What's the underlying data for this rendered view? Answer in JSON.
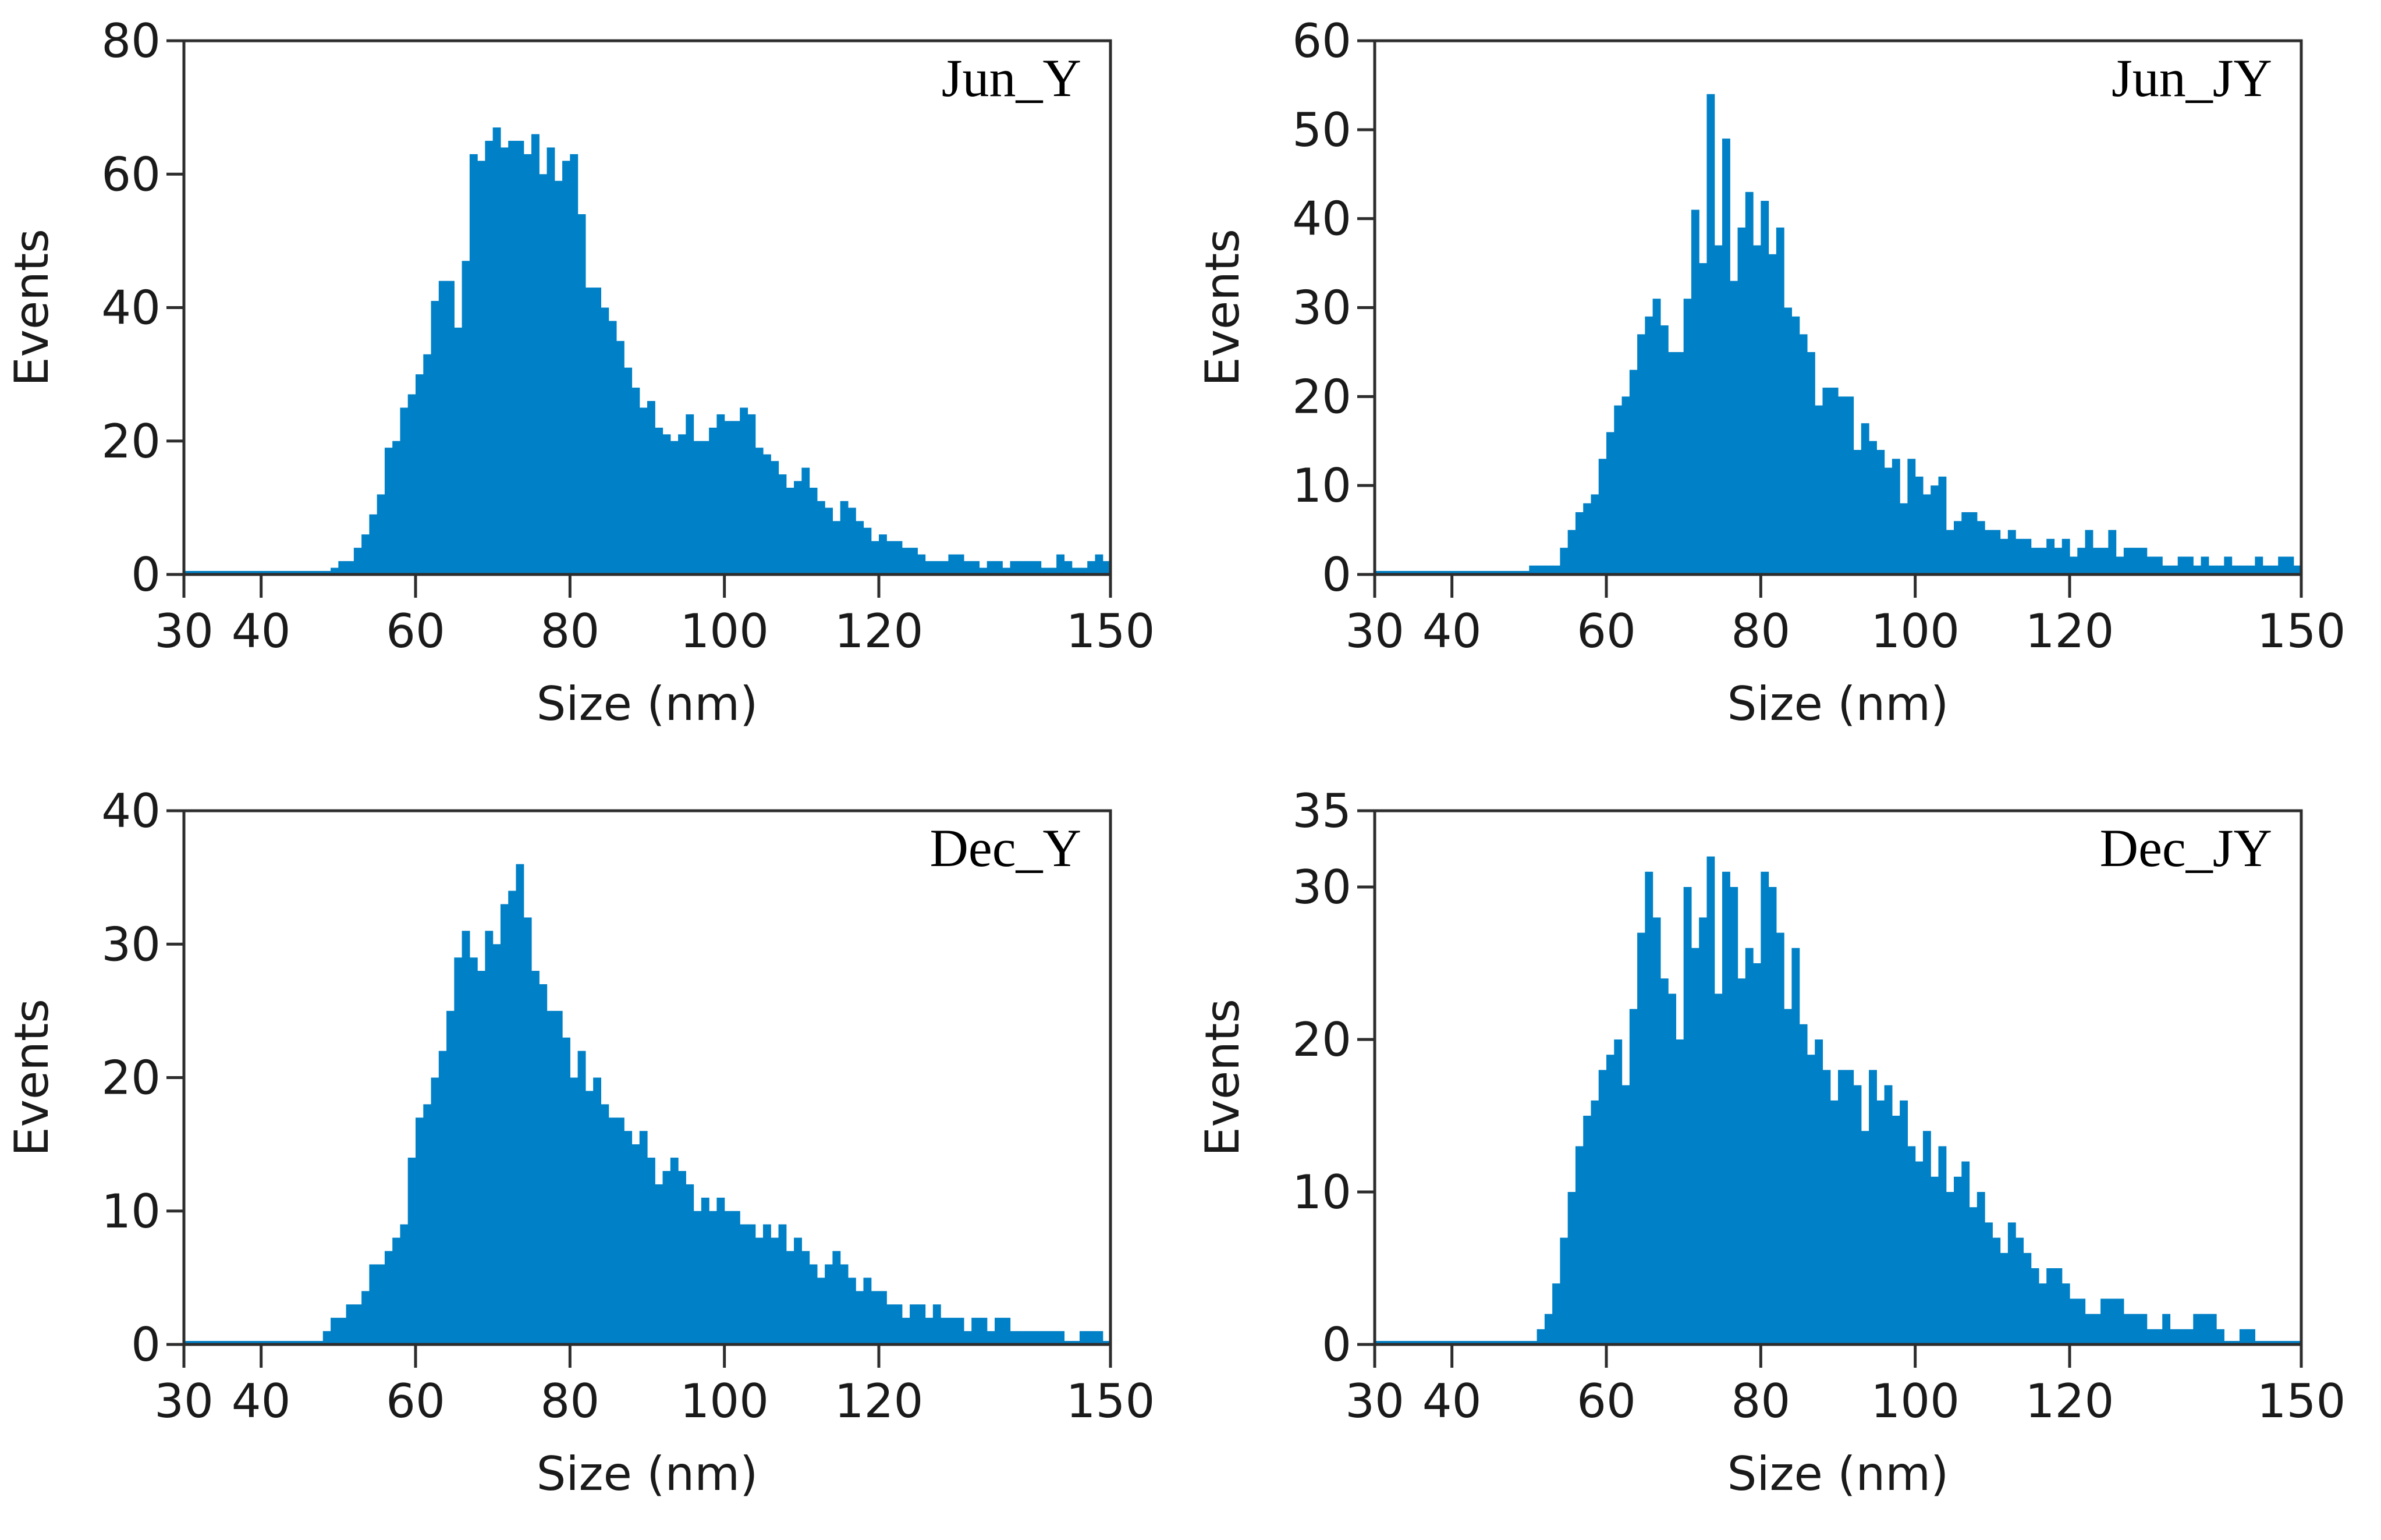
{
  "figure": {
    "bar_color": "#0080C6",
    "text_color": "#1a1a1a",
    "tick_color": "#2d2d2d"
  },
  "chart_data": [
    {
      "type": "bar",
      "title": "Jun_Y",
      "xlabel": "Size (nm)",
      "ylabel": "Events",
      "xlim": [
        30,
        150
      ],
      "ylim": [
        0,
        80
      ],
      "xticks": [
        30,
        40,
        60,
        80,
        100,
        120,
        150
      ],
      "xtick_labels": [
        "30",
        "40",
        "60",
        "80",
        "100",
        "120",
        "150"
      ],
      "yticks": [
        0,
        20,
        40,
        60,
        80
      ],
      "ytick_labels": [
        "0",
        "20",
        "40",
        "60",
        "80"
      ],
      "bin_width": 1,
      "bin_start": 30,
      "values": [
        0,
        0,
        0,
        0,
        0,
        0,
        0,
        0,
        0,
        0,
        0,
        0,
        0,
        0,
        0,
        0,
        0,
        0,
        0,
        1,
        2,
        2,
        4,
        6,
        9,
        12,
        19,
        20,
        25,
        27,
        30,
        33,
        41,
        44,
        44,
        37,
        47,
        63,
        62,
        65,
        67,
        64,
        65,
        65,
        63,
        66,
        60,
        64,
        59,
        62,
        63,
        54,
        43,
        43,
        40,
        38,
        35,
        31,
        28,
        25,
        26,
        22,
        21,
        20,
        21,
        24,
        20,
        20,
        22,
        24,
        23,
        23,
        25,
        24,
        19,
        18,
        17,
        15,
        13,
        14,
        16,
        13,
        11,
        10,
        8,
        11,
        10,
        8,
        7,
        5,
        6,
        5,
        5,
        4,
        4,
        3,
        2,
        2,
        2,
        3,
        3,
        2,
        2,
        1,
        2,
        2,
        1,
        2,
        2,
        2,
        2,
        1,
        1,
        3,
        2,
        1,
        1,
        2,
        3,
        2
      ],
      "grid": false,
      "legend": "none"
    },
    {
      "type": "bar",
      "title": "Jun_JY",
      "xlabel": "Size (nm)",
      "ylabel": "Events",
      "xlim": [
        30,
        150
      ],
      "ylim": [
        0,
        60
      ],
      "xticks": [
        30,
        40,
        60,
        80,
        100,
        120,
        150
      ],
      "xtick_labels": [
        "30",
        "40",
        "60",
        "80",
        "100",
        "120",
        "150"
      ],
      "yticks": [
        0,
        10,
        20,
        30,
        40,
        50,
        60
      ],
      "ytick_labels": [
        "0",
        "10",
        "20",
        "30",
        "40",
        "50",
        "60"
      ],
      "bin_width": 1,
      "bin_start": 30,
      "values": [
        0,
        0,
        0,
        0,
        0,
        0,
        0,
        0,
        0,
        0,
        0,
        0,
        0,
        0,
        0,
        0,
        0,
        0,
        0,
        0,
        1,
        1,
        1,
        1,
        3,
        5,
        7,
        8,
        9,
        13,
        16,
        19,
        20,
        23,
        27,
        29,
        31,
        28,
        25,
        25,
        31,
        41,
        35,
        54,
        37,
        49,
        33,
        39,
        43,
        37,
        42,
        36,
        39,
        30,
        29,
        27,
        25,
        19,
        21,
        21,
        20,
        20,
        14,
        17,
        15,
        14,
        12,
        13,
        8,
        13,
        11,
        9,
        10,
        11,
        5,
        6,
        7,
        7,
        6,
        5,
        5,
        4,
        5,
        4,
        4,
        3,
        3,
        4,
        3,
        4,
        2,
        3,
        5,
        3,
        3,
        5,
        2,
        3,
        3,
        3,
        2,
        2,
        1,
        1,
        2,
        2,
        1,
        2,
        1,
        1,
        2,
        1,
        1,
        1,
        2,
        1,
        1,
        2,
        2,
        1
      ],
      "grid": false,
      "legend": "none"
    },
    {
      "type": "bar",
      "title": "Dec_Y",
      "xlabel": "Size (nm)",
      "ylabel": "Events",
      "xlim": [
        30,
        150
      ],
      "ylim": [
        0,
        40
      ],
      "xticks": [
        30,
        40,
        60,
        80,
        100,
        120,
        150
      ],
      "xtick_labels": [
        "30",
        "40",
        "60",
        "80",
        "100",
        "120",
        "150"
      ],
      "yticks": [
        0,
        10,
        20,
        30,
        40
      ],
      "ytick_labels": [
        "0",
        "10",
        "20",
        "30",
        "40"
      ],
      "bin_width": 1,
      "bin_start": 30,
      "values": [
        0,
        0,
        0,
        0,
        0,
        0,
        0,
        0,
        0,
        0,
        0,
        0,
        0,
        0,
        0,
        0,
        0,
        0,
        1,
        2,
        2,
        3,
        3,
        4,
        6,
        6,
        7,
        8,
        9,
        14,
        17,
        18,
        20,
        22,
        25,
        29,
        31,
        29,
        28,
        31,
        30,
        33,
        34,
        36,
        32,
        28,
        27,
        25,
        25,
        23,
        20,
        22,
        19,
        20,
        18,
        17,
        17,
        16,
        15,
        16,
        14,
        12,
        13,
        14,
        13,
        12,
        10,
        11,
        10,
        11,
        10,
        10,
        9,
        9,
        8,
        9,
        8,
        9,
        7,
        8,
        7,
        6,
        5,
        6,
        7,
        6,
        5,
        4,
        5,
        4,
        4,
        3,
        3,
        2,
        3,
        3,
        2,
        3,
        2,
        2,
        2,
        1,
        2,
        2,
        1,
        2,
        2,
        1,
        1,
        1,
        1,
        1,
        1,
        1,
        0,
        0,
        1,
        1,
        1,
        0
      ],
      "grid": false,
      "legend": "none"
    },
    {
      "type": "bar",
      "title": "Dec_JY",
      "xlabel": "Size (nm)",
      "ylabel": "Events",
      "xlim": [
        30,
        150
      ],
      "ylim": [
        0,
        35
      ],
      "xticks": [
        30,
        40,
        60,
        80,
        100,
        120,
        150
      ],
      "xtick_labels": [
        "30",
        "40",
        "60",
        "80",
        "100",
        "120",
        "150"
      ],
      "yticks": [
        0,
        10,
        20,
        30,
        35
      ],
      "ytick_labels": [
        "0",
        "10",
        "20",
        "30",
        "35"
      ],
      "bin_width": 1,
      "bin_start": 30,
      "values": [
        0,
        0,
        0,
        0,
        0,
        0,
        0,
        0,
        0,
        0,
        0,
        0,
        0,
        0,
        0,
        0,
        0,
        0,
        0,
        0,
        0,
        1,
        2,
        4,
        7,
        10,
        13,
        15,
        16,
        18,
        19,
        20,
        17,
        22,
        27,
        31,
        28,
        24,
        23,
        20,
        30,
        26,
        28,
        32,
        23,
        31,
        30,
        24,
        26,
        25,
        31,
        30,
        27,
        22,
        26,
        21,
        19,
        20,
        18,
        16,
        18,
        18,
        17,
        14,
        18,
        16,
        17,
        15,
        16,
        13,
        12,
        14,
        11,
        13,
        10,
        11,
        12,
        9,
        10,
        8,
        7,
        6,
        8,
        7,
        6,
        5,
        4,
        5,
        5,
        4,
        3,
        3,
        2,
        2,
        3,
        3,
        3,
        2,
        2,
        2,
        1,
        1,
        2,
        1,
        1,
        1,
        2,
        2,
        2,
        1,
        0,
        0,
        1,
        1,
        0,
        0,
        0,
        0,
        0,
        0
      ],
      "grid": false,
      "legend": "none"
    }
  ]
}
